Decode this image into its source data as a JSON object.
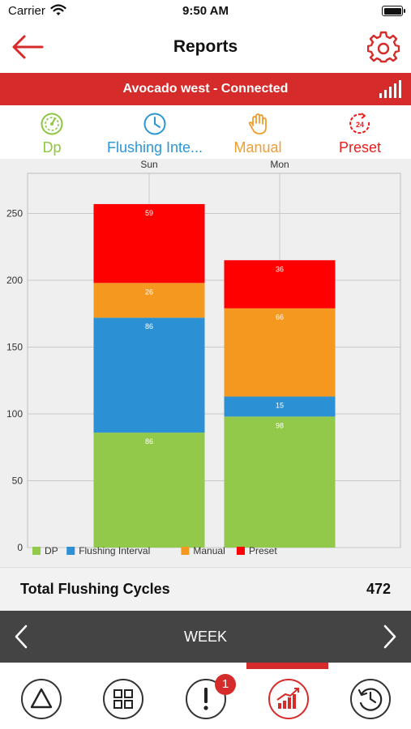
{
  "status_bar": {
    "carrier": "Carrier",
    "time": "9:50 AM"
  },
  "nav": {
    "title": "Reports"
  },
  "connection": {
    "text": "Avocado west - Connected"
  },
  "types": [
    {
      "label": "Dp",
      "color": "#8dc63f",
      "icon": "gauge-icon"
    },
    {
      "label": "Flushing Inte...",
      "color": "#2b96d6",
      "icon": "clock-icon"
    },
    {
      "label": "Manual",
      "color": "#f39c2b",
      "icon": "hand-icon"
    },
    {
      "label": "Preset",
      "color": "#ee1c1c",
      "icon": "timer-24-icon"
    }
  ],
  "chart_data": {
    "type": "bar",
    "stacked": true,
    "categories": [
      "Sun",
      "Mon"
    ],
    "series": [
      {
        "name": "DP",
        "color": "#92c94a",
        "values": [
          86,
          98
        ]
      },
      {
        "name": "Flushing Interval",
        "color": "#2b91d4",
        "values": [
          86,
          15
        ]
      },
      {
        "name": "Manual",
        "color": "#f5981f",
        "values": [
          26,
          66
        ]
      },
      {
        "name": "Preset",
        "color": "#ff0000",
        "values": [
          59,
          36
        ]
      }
    ],
    "ylim": [
      0,
      280
    ],
    "yticks": [
      0,
      50,
      100,
      150,
      200,
      250
    ],
    "legend_position": "bottom",
    "grid": true
  },
  "total": {
    "label": "Total Flushing Cycles",
    "value": "472"
  },
  "period": {
    "label": "WEEK"
  },
  "tabs": [
    {
      "name": "alerts-tab",
      "icon": "triangle-icon"
    },
    {
      "name": "dashboard-tab",
      "icon": "grid-icon"
    },
    {
      "name": "notifications-tab",
      "icon": "exclamation-icon",
      "badge": "1"
    },
    {
      "name": "reports-tab",
      "icon": "chart-icon",
      "active": true
    },
    {
      "name": "history-tab",
      "icon": "history-icon"
    }
  ]
}
